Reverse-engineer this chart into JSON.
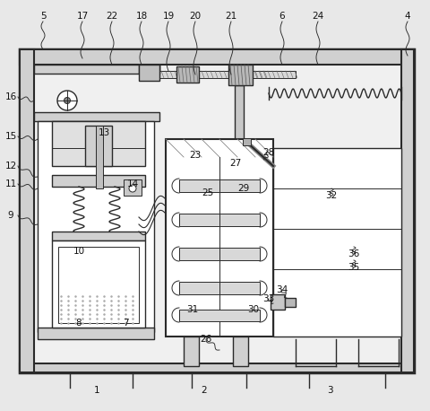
{
  "bg_color": "#e8e8e8",
  "line_color": "#2a2a2a",
  "fill_light": "#d0d0d0",
  "fill_white": "#ffffff",
  "fill_inner": "#f0f0f0",
  "label_color": "#111111",
  "figsize": [
    4.8,
    4.58
  ],
  "dpi": 100,
  "labels_top": [
    [
      48,
      18,
      "5"
    ],
    [
      92,
      18,
      "17"
    ],
    [
      125,
      18,
      "22"
    ],
    [
      158,
      18,
      "18"
    ],
    [
      188,
      18,
      "19"
    ],
    [
      218,
      18,
      "20"
    ],
    [
      258,
      18,
      "21"
    ],
    [
      315,
      18,
      "6"
    ],
    [
      355,
      18,
      "24"
    ],
    [
      455,
      18,
      "4"
    ]
  ],
  "labels_left": [
    [
      12,
      108,
      "16"
    ],
    [
      12,
      152,
      "15"
    ],
    [
      12,
      185,
      "12"
    ],
    [
      12,
      205,
      "11"
    ],
    [
      12,
      240,
      "9"
    ]
  ],
  "labels_internal": [
    [
      116,
      148,
      "13"
    ],
    [
      148,
      205,
      "14"
    ],
    [
      88,
      280,
      "10"
    ],
    [
      218,
      173,
      "23"
    ],
    [
      232,
      215,
      "25"
    ],
    [
      263,
      182,
      "27"
    ],
    [
      300,
      170,
      "28"
    ],
    [
      272,
      210,
      "29"
    ],
    [
      283,
      345,
      "30"
    ],
    [
      215,
      345,
      "31"
    ],
    [
      370,
      218,
      "32"
    ],
    [
      300,
      333,
      "33"
    ],
    [
      315,
      323,
      "34"
    ],
    [
      395,
      298,
      "35"
    ],
    [
      395,
      283,
      "36"
    ],
    [
      88,
      360,
      "8"
    ],
    [
      140,
      360,
      "7"
    ],
    [
      108,
      435,
      "1"
    ],
    [
      228,
      435,
      "2"
    ],
    [
      368,
      435,
      "3"
    ],
    [
      230,
      378,
      "26"
    ]
  ]
}
